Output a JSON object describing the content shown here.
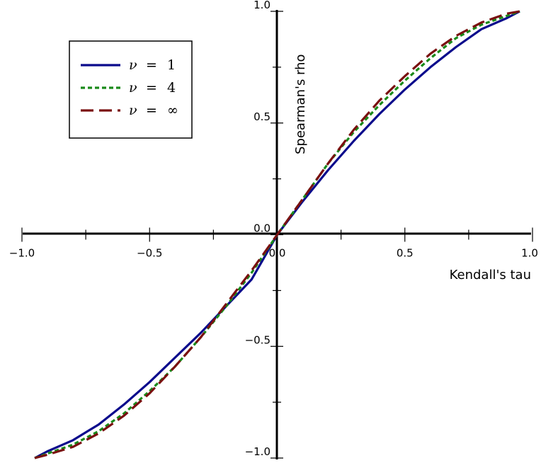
{
  "chart_data": {
    "type": "line",
    "title": "",
    "xlabel": "Kendall's tau",
    "ylabel": "Spearman's rho",
    "xlim": [
      -1.0,
      1.0
    ],
    "ylim": [
      -1.0,
      1.0
    ],
    "x_ticks": [
      -1.0,
      -0.5,
      0.0,
      0.5,
      1.0
    ],
    "y_ticks": [
      -1.0,
      -0.5,
      0.0,
      0.5,
      1.0
    ],
    "x_tick_labels": [
      "−1.0",
      "−0.5",
      "0.0",
      "0.5",
      "1.0"
    ],
    "y_tick_labels": [
      "−1.0",
      "−0.5",
      "0.0",
      "0.5",
      "1.0"
    ],
    "grid": false,
    "legend_position": "top-left",
    "series": [
      {
        "name": "ν = 1",
        "legend_symbol": "ν",
        "legend_value": "1",
        "color": "#0a0a8c",
        "dash": "solid",
        "x": [
          -0.95,
          -0.9,
          -0.8,
          -0.7,
          -0.6,
          -0.5,
          -0.4,
          -0.3,
          -0.2,
          -0.1,
          0.0,
          0.1,
          0.2,
          0.3,
          0.4,
          0.5,
          0.6,
          0.7,
          0.8,
          0.9,
          0.95
        ],
        "y": [
          -1.0,
          -0.97,
          -0.92,
          -0.85,
          -0.76,
          -0.66,
          -0.55,
          -0.44,
          -0.32,
          -0.2,
          0.0,
          0.15,
          0.29,
          0.42,
          0.54,
          0.65,
          0.75,
          0.84,
          0.92,
          0.97,
          1.0
        ]
      },
      {
        "name": "ν = 4",
        "legend_symbol": "ν",
        "legend_value": "4",
        "color": "#1a8a1a",
        "dash": "short",
        "x": [
          -0.95,
          -0.9,
          -0.8,
          -0.7,
          -0.6,
          -0.5,
          -0.4,
          -0.3,
          -0.2,
          -0.1,
          0.0,
          0.1,
          0.2,
          0.3,
          0.4,
          0.5,
          0.6,
          0.7,
          0.8,
          0.9,
          0.95
        ],
        "y": [
          -1.0,
          -0.98,
          -0.94,
          -0.88,
          -0.8,
          -0.7,
          -0.59,
          -0.46,
          -0.32,
          -0.17,
          0.0,
          0.16,
          0.32,
          0.46,
          0.58,
          0.69,
          0.79,
          0.88,
          0.94,
          0.98,
          1.0
        ]
      },
      {
        "name": "ν = ∞",
        "legend_symbol": "ν",
        "legend_value": "∞",
        "color": "#7a1010",
        "dash": "long",
        "x": [
          -0.95,
          -0.9,
          -0.8,
          -0.7,
          -0.6,
          -0.5,
          -0.4,
          -0.3,
          -0.2,
          -0.1,
          0.0,
          0.1,
          0.2,
          0.3,
          0.4,
          0.5,
          0.6,
          0.7,
          0.8,
          0.9,
          0.95
        ],
        "y": [
          -1.0,
          -0.985,
          -0.95,
          -0.89,
          -0.81,
          -0.71,
          -0.59,
          -0.46,
          -0.31,
          -0.16,
          0.0,
          0.16,
          0.32,
          0.47,
          0.6,
          0.71,
          0.81,
          0.89,
          0.95,
          0.99,
          1.0
        ]
      }
    ]
  }
}
